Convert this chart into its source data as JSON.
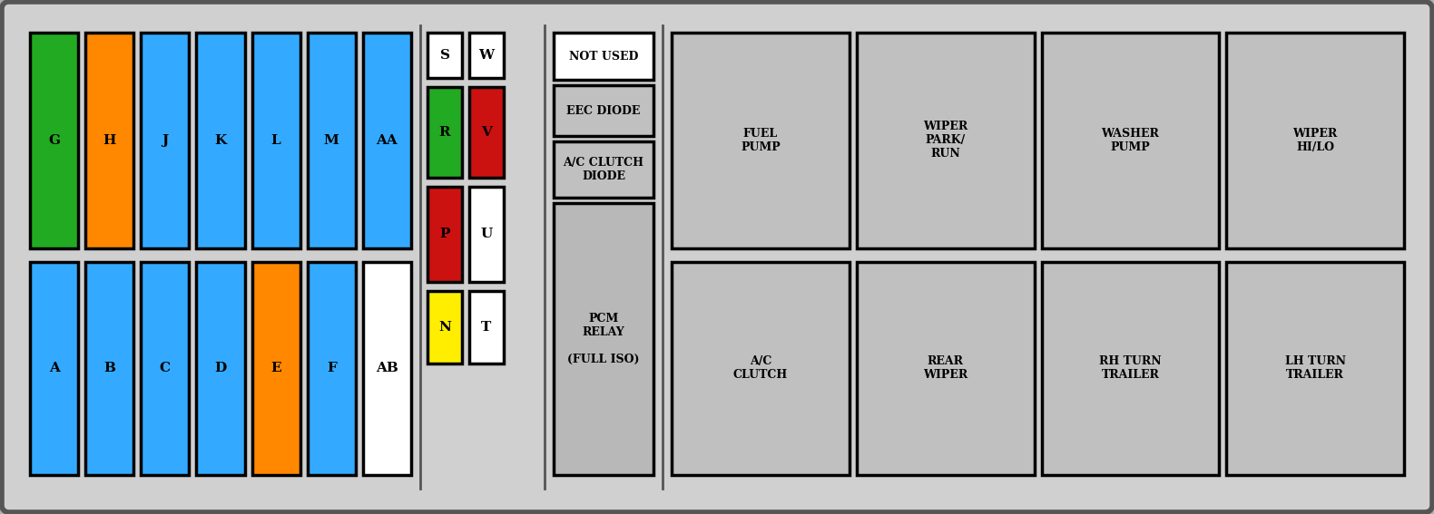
{
  "bg_color": "#d0d0d0",
  "fig_bg": "#b0b0b0",
  "top_row": [
    {
      "label": "G",
      "color": "#22aa22"
    },
    {
      "label": "H",
      "color": "#ff8800"
    },
    {
      "label": "J",
      "color": "#33aaff"
    },
    {
      "label": "K",
      "color": "#33aaff"
    },
    {
      "label": "L",
      "color": "#33aaff"
    },
    {
      "label": "M",
      "color": "#33aaff"
    },
    {
      "label": "AA",
      "color": "#33aaff"
    }
  ],
  "bottom_row": [
    {
      "label": "A",
      "color": "#33aaff"
    },
    {
      "label": "B",
      "color": "#33aaff"
    },
    {
      "label": "C",
      "color": "#33aaff"
    },
    {
      "label": "D",
      "color": "#33aaff"
    },
    {
      "label": "E",
      "color": "#ff8800"
    },
    {
      "label": "F",
      "color": "#33aaff"
    },
    {
      "label": "AB",
      "color": "#ffffff"
    }
  ],
  "mid_col1": [
    {
      "label": "S",
      "color": "#ffffff"
    },
    {
      "label": "R",
      "color": "#22aa22"
    },
    {
      "label": "P",
      "color": "#cc1111"
    },
    {
      "label": "N",
      "color": "#ffee00"
    }
  ],
  "mid_col2": [
    {
      "label": "W",
      "color": "#ffffff"
    },
    {
      "label": "V",
      "color": "#cc1111"
    },
    {
      "label": "U",
      "color": "#ffffff"
    },
    {
      "label": "T",
      "color": "#ffffff"
    }
  ],
  "info_boxes": [
    {
      "label": "NOT USED",
      "color": "#ffffff",
      "border": "#000000"
    },
    {
      "label": "EEC DIODE",
      "color": "#c0c0c0",
      "border": "#000000"
    },
    {
      "label": "A/C CLUTCH\nDIODE",
      "color": "#c0c0c0",
      "border": "#000000"
    },
    {
      "label": "PCM\nRELAY\n\n(FULL ISO)",
      "color": "#b8b8b8",
      "border": "#000000"
    }
  ],
  "relay_top": [
    {
      "label": "FUEL\nPUMP",
      "color": "#c0c0c0"
    },
    {
      "label": "WIPER\nPARK/\nRUN",
      "color": "#c0c0c0"
    },
    {
      "label": "WASHER\nPUMP",
      "color": "#c0c0c0"
    },
    {
      "label": "WIPER\nHI/LO",
      "color": "#c0c0c0"
    }
  ],
  "relay_bottom": [
    {
      "label": "A/C\nCLUTCH",
      "color": "#c0c0c0"
    },
    {
      "label": "REAR\nWIPER",
      "color": "#c0c0c0"
    },
    {
      "label": "RH TURN\nTRAILER",
      "color": "#c0c0c0"
    },
    {
      "label": "LH TURN\nTRAILER",
      "color": "#c0c0c0"
    }
  ]
}
